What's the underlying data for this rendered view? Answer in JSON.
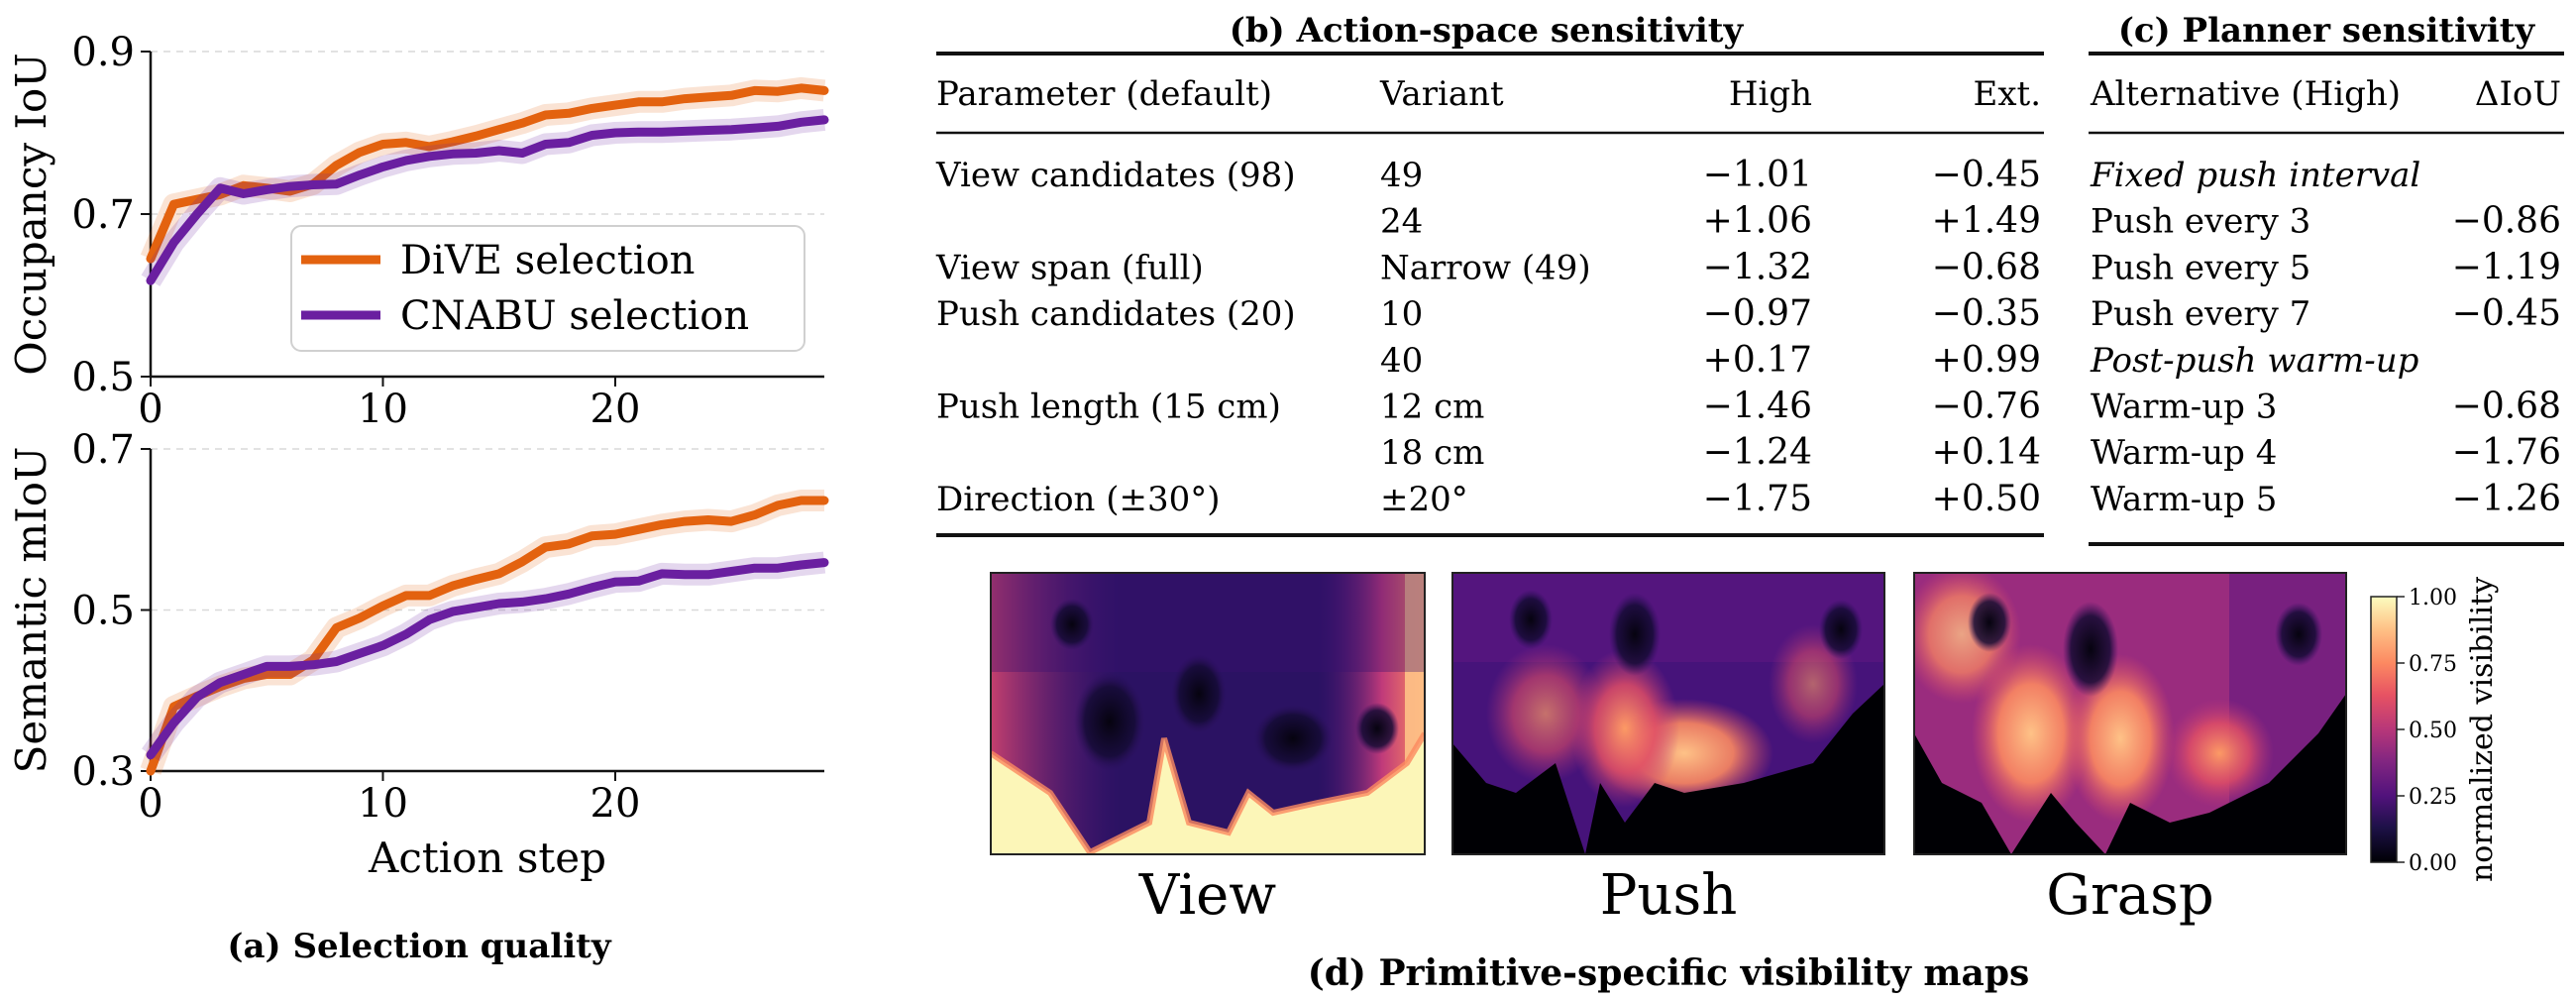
{
  "colors": {
    "dive": "#E3620F",
    "cnabu": "#6A1FA0",
    "text": "#111111"
  },
  "panel_a": {
    "caption": "(a) Selection quality",
    "legend": [
      "DiVE selection",
      "CNABU selection"
    ],
    "xlabel": "Action step"
  },
  "panel_b": {
    "title": "(b) Action-space sensitivity",
    "headers": [
      "Parameter (default)",
      "Variant",
      "High",
      "Ext."
    ],
    "rows": [
      [
        "View candidates (98)",
        "49",
        "−1.01",
        "−0.45"
      ],
      [
        "",
        "24",
        "+1.06",
        "+1.49"
      ],
      [
        "View span (full)",
        "Narrow (49)",
        "−1.32",
        "−0.68"
      ],
      [
        "Push candidates (20)",
        "10",
        "−0.97",
        "−0.35"
      ],
      [
        "",
        "40",
        "+0.17",
        "+0.99"
      ],
      [
        "Push length (15 cm)",
        "12 cm",
        "−1.46",
        "−0.76"
      ],
      [
        "",
        "18 cm",
        "−1.24",
        "+0.14"
      ],
      [
        "Direction (±30°)",
        "±20°",
        "−1.75",
        "+0.50"
      ]
    ]
  },
  "panel_c": {
    "title": "(c) Planner sensitivity",
    "headers": [
      "Alternative (High)",
      "ΔIoU"
    ],
    "rows": [
      [
        "Fixed push interval",
        ""
      ],
      [
        "Push every 3",
        "−0.86"
      ],
      [
        "Push every 5",
        "−1.19"
      ],
      [
        "Push every 7",
        "−0.45"
      ],
      [
        "Post-push warm-up",
        ""
      ],
      [
        "Warm-up 3",
        "−0.68"
      ],
      [
        "Warm-up 4",
        "−1.76"
      ],
      [
        "Warm-up 5",
        "−1.26"
      ]
    ]
  },
  "panel_d": {
    "caption": "(d) Primitive-specific visibility maps",
    "maps": [
      "View",
      "Push",
      "Grasp"
    ],
    "colorbar": {
      "label": "normalized visibility",
      "ticks": [
        "1.00",
        "0.75",
        "0.50",
        "0.25",
        "0.00"
      ],
      "colormap": "magma"
    }
  },
  "chart_data": [
    {
      "type": "line",
      "ylabel": "Occupancy IoU",
      "xlim": [
        0,
        29
      ],
      "ylim": [
        0.5,
        0.9
      ],
      "xticks": [
        "0",
        "10",
        "20"
      ],
      "yticks": [
        "0.5",
        "0.7",
        "0.9"
      ],
      "legend_position": "center-right",
      "grid": "horizontal-dashed",
      "x": [
        0,
        1,
        2,
        3,
        4,
        5,
        6,
        7,
        8,
        9,
        10,
        11,
        12,
        13,
        14,
        15,
        16,
        17,
        18,
        19,
        20,
        21,
        22,
        23,
        24,
        25,
        26,
        27,
        28,
        29
      ],
      "series": [
        {
          "name": "DiVE selection",
          "values": [
            0.645,
            0.712,
            0.718,
            0.724,
            0.735,
            0.732,
            0.728,
            0.737,
            0.76,
            0.776,
            0.786,
            0.788,
            0.783,
            0.789,
            0.796,
            0.804,
            0.812,
            0.822,
            0.824,
            0.83,
            0.834,
            0.838,
            0.838,
            0.842,
            0.844,
            0.846,
            0.852,
            0.851,
            0.855,
            0.852
          ]
        },
        {
          "name": "CNABU selection",
          "values": [
            0.618,
            0.665,
            0.7,
            0.732,
            0.725,
            0.73,
            0.734,
            0.736,
            0.737,
            0.748,
            0.758,
            0.766,
            0.771,
            0.774,
            0.775,
            0.778,
            0.775,
            0.786,
            0.788,
            0.797,
            0.8,
            0.801,
            0.801,
            0.802,
            0.803,
            0.804,
            0.806,
            0.808,
            0.813,
            0.816
          ]
        }
      ]
    },
    {
      "type": "line",
      "ylabel": "Semantic mIoU",
      "xlabel": "Action step",
      "xlim": [
        0,
        29
      ],
      "ylim": [
        0.3,
        0.7
      ],
      "xticks": [
        "0",
        "10",
        "20"
      ],
      "yticks": [
        "0.3",
        "0.5",
        "0.7"
      ],
      "grid": "horizontal-dashed",
      "x": [
        0,
        1,
        2,
        3,
        4,
        5,
        6,
        7,
        8,
        9,
        10,
        11,
        12,
        13,
        14,
        15,
        16,
        17,
        18,
        19,
        20,
        21,
        22,
        23,
        24,
        25,
        26,
        27,
        28,
        29
      ],
      "series": [
        {
          "name": "DiVE selection",
          "values": [
            0.3,
            0.38,
            0.393,
            0.405,
            0.415,
            0.42,
            0.42,
            0.438,
            0.478,
            0.49,
            0.505,
            0.518,
            0.518,
            0.53,
            0.538,
            0.545,
            0.56,
            0.578,
            0.582,
            0.592,
            0.594,
            0.6,
            0.606,
            0.61,
            0.612,
            0.61,
            0.618,
            0.63,
            0.636,
            0.636
          ]
        },
        {
          "name": "CNABU selection",
          "values": [
            0.32,
            0.36,
            0.392,
            0.41,
            0.42,
            0.43,
            0.43,
            0.432,
            0.436,
            0.446,
            0.456,
            0.47,
            0.488,
            0.498,
            0.503,
            0.508,
            0.51,
            0.514,
            0.52,
            0.528,
            0.535,
            0.536,
            0.545,
            0.544,
            0.544,
            0.548,
            0.552,
            0.552,
            0.556,
            0.559
          ]
        }
      ]
    }
  ]
}
